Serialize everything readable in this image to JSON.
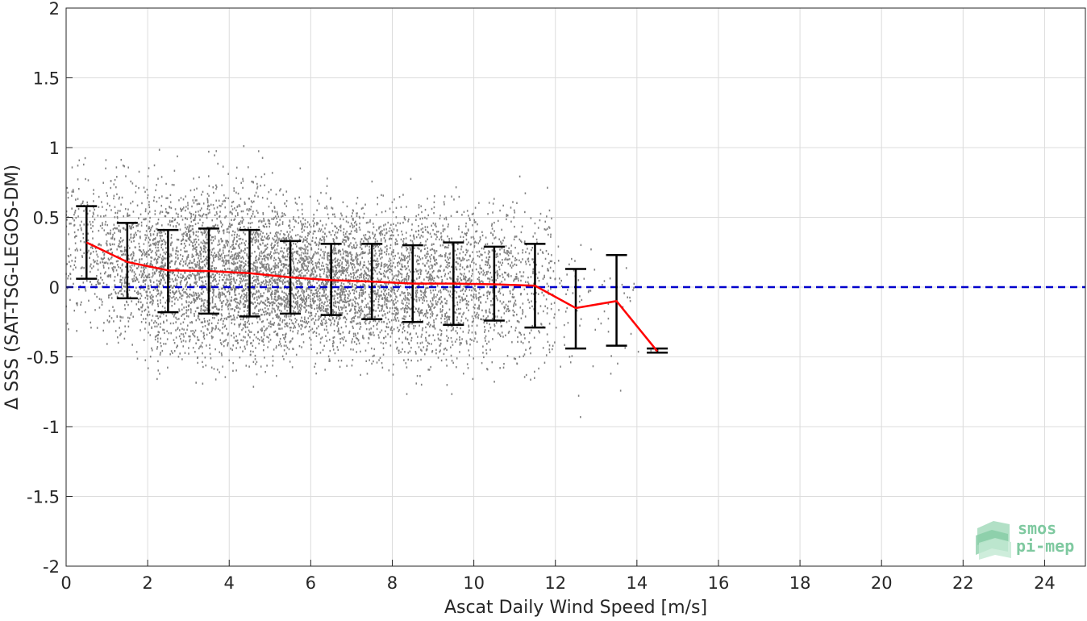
{
  "chart_data": {
    "type": "scatter",
    "xlabel": "Ascat Daily Wind Speed [m/s]",
    "ylabel": "Δ SSS (SAT-TSG-LEGOS-DM)",
    "xlim": [
      0,
      25
    ],
    "ylim": [
      -2,
      2
    ],
    "xticks": [
      0,
      2,
      4,
      6,
      8,
      10,
      12,
      14,
      16,
      18,
      20,
      22,
      24
    ],
    "yticks": [
      -2,
      -1.5,
      -1,
      -0.5,
      0,
      0.5,
      1,
      1.5,
      2
    ],
    "ytick_labels": [
      "-2",
      "-1.5",
      "-1",
      "-0.5",
      "0",
      "0.5",
      "1",
      "1.5",
      "2"
    ],
    "grid": true,
    "scatter_color": "#808080",
    "mean_color": "#ff0000",
    "errorbar_color": "#000000",
    "zero_line_color": "#0000cc",
    "zero_line": 0,
    "binned_stats": [
      {
        "x": 0.5,
        "mean": 0.32,
        "low": 0.06,
        "high": 0.58
      },
      {
        "x": 1.5,
        "mean": 0.18,
        "low": -0.08,
        "high": 0.46
      },
      {
        "x": 2.5,
        "mean": 0.12,
        "low": -0.18,
        "high": 0.41
      },
      {
        "x": 3.5,
        "mean": 0.115,
        "low": -0.19,
        "high": 0.42
      },
      {
        "x": 4.5,
        "mean": 0.1,
        "low": -0.21,
        "high": 0.41
      },
      {
        "x": 5.5,
        "mean": 0.07,
        "low": -0.19,
        "high": 0.33
      },
      {
        "x": 6.5,
        "mean": 0.05,
        "low": -0.2,
        "high": 0.31
      },
      {
        "x": 7.5,
        "mean": 0.04,
        "low": -0.23,
        "high": 0.31
      },
      {
        "x": 8.5,
        "mean": 0.025,
        "low": -0.25,
        "high": 0.3
      },
      {
        "x": 9.5,
        "mean": 0.025,
        "low": -0.27,
        "high": 0.32
      },
      {
        "x": 10.5,
        "mean": 0.02,
        "low": -0.24,
        "high": 0.29
      },
      {
        "x": 11.5,
        "mean": 0.01,
        "low": -0.29,
        "high": 0.31
      },
      {
        "x": 12.5,
        "mean": -0.15,
        "low": -0.44,
        "high": 0.13
      },
      {
        "x": 13.5,
        "mean": -0.1,
        "low": -0.42,
        "high": 0.23
      },
      {
        "x": 14.5,
        "mean": -0.46,
        "low": -0.47,
        "high": -0.44
      }
    ],
    "scatter_density": [
      {
        "x_range": [
          0,
          1
        ],
        "center": 0.3,
        "spread": 0.27,
        "count": 250
      },
      {
        "x_range": [
          1,
          2
        ],
        "center": 0.18,
        "spread": 0.28,
        "count": 450
      },
      {
        "x_range": [
          2,
          3
        ],
        "center": 0.12,
        "spread": 0.3,
        "count": 650
      },
      {
        "x_range": [
          3,
          4
        ],
        "center": 0.11,
        "spread": 0.31,
        "count": 800
      },
      {
        "x_range": [
          4,
          5
        ],
        "center": 0.1,
        "spread": 0.31,
        "count": 850
      },
      {
        "x_range": [
          5,
          6
        ],
        "center": 0.07,
        "spread": 0.26,
        "count": 850
      },
      {
        "x_range": [
          6,
          7
        ],
        "center": 0.05,
        "spread": 0.26,
        "count": 800
      },
      {
        "x_range": [
          7,
          8
        ],
        "center": 0.04,
        "spread": 0.27,
        "count": 700
      },
      {
        "x_range": [
          8,
          9
        ],
        "center": 0.025,
        "spread": 0.28,
        "count": 600
      },
      {
        "x_range": [
          9,
          10
        ],
        "center": 0.025,
        "spread": 0.3,
        "count": 500
      },
      {
        "x_range": [
          10,
          11
        ],
        "center": 0.02,
        "spread": 0.27,
        "count": 380
      },
      {
        "x_range": [
          11,
          12
        ],
        "center": 0.01,
        "spread": 0.3,
        "count": 220
      },
      {
        "x_range": [
          12,
          13
        ],
        "center": -0.15,
        "spread": 0.29,
        "count": 45
      },
      {
        "x_range": [
          13,
          14
        ],
        "center": -0.1,
        "spread": 0.33,
        "count": 25
      },
      {
        "x_range": [
          14,
          15
        ],
        "center": -0.46,
        "spread": 0.02,
        "count": 3
      }
    ]
  },
  "logo": {
    "line1": "smos",
    "line2": "pi-mep",
    "color": "#7fc9a0"
  }
}
